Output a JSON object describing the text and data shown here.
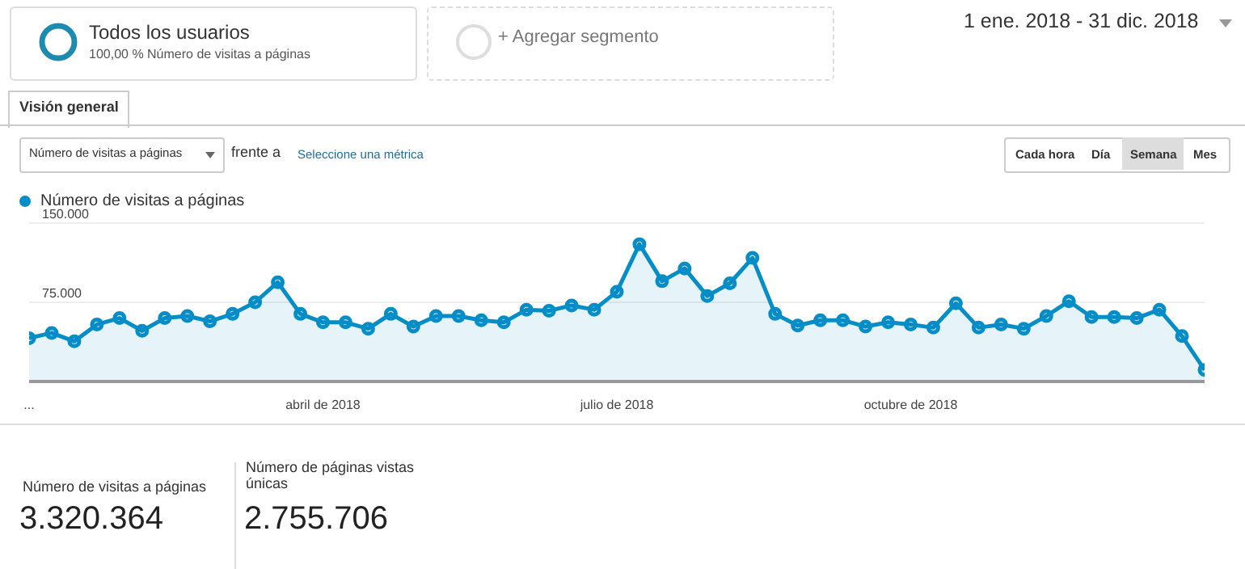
{
  "chart_data": {
    "type": "area",
    "categories": [
      "...",
      null,
      null,
      null,
      null,
      null,
      null,
      null,
      null,
      null,
      null,
      null,
      null,
      "abril de 2018",
      null,
      null,
      null,
      null,
      null,
      null,
      null,
      null,
      null,
      null,
      null,
      null,
      "julio de 2018",
      null,
      null,
      null,
      null,
      null,
      null,
      null,
      null,
      null,
      null,
      null,
      null,
      "octubre de 2018",
      null,
      null,
      null,
      null,
      null,
      null,
      null,
      null,
      null,
      null,
      null,
      null,
      null
    ],
    "series": [
      {
        "name": "Número de visitas a páginas",
        "color": "#058dc7",
        "values": [
          41000,
          46000,
          38000,
          54000,
          60000,
          48000,
          60000,
          62000,
          57000,
          64000,
          75000,
          94000,
          64000,
          56000,
          56000,
          50000,
          64000,
          52000,
          62000,
          62000,
          58000,
          56000,
          68000,
          67000,
          72000,
          68000,
          85000,
          130000,
          95000,
          107000,
          81000,
          93000,
          117000,
          64000,
          53000,
          58000,
          58000,
          52000,
          56000,
          54000,
          51000,
          74000,
          51000,
          54000,
          50000,
          62000,
          76000,
          61000,
          61000,
          60000,
          68000,
          43000,
          11000
        ]
      }
    ],
    "ylim": [
      0,
      150000
    ],
    "yticks": [
      {
        "value": 0,
        "label": null
      },
      {
        "value": 75000,
        "label": "75.000"
      },
      {
        "value": 150000,
        "label": "150.000"
      }
    ],
    "grid": "y",
    "legend": "top left",
    "marker": "circle",
    "annotations": [
      "Todos los usuarios",
      "100,00 % Número de visitas a páginas",
      "+ Agregar segmento",
      "1 ene. 2018 - 31 dic. 2018",
      "Visión general",
      "Número de visitas a páginas",
      "frente a",
      "Seleccione una métrica",
      "Cada hora",
      "Día",
      "Semana",
      "Mes",
      "Número de visitas a páginas",
      "3.320.364",
      "Número de páginas vistas únicas",
      "2.755.706"
    ]
  }
}
